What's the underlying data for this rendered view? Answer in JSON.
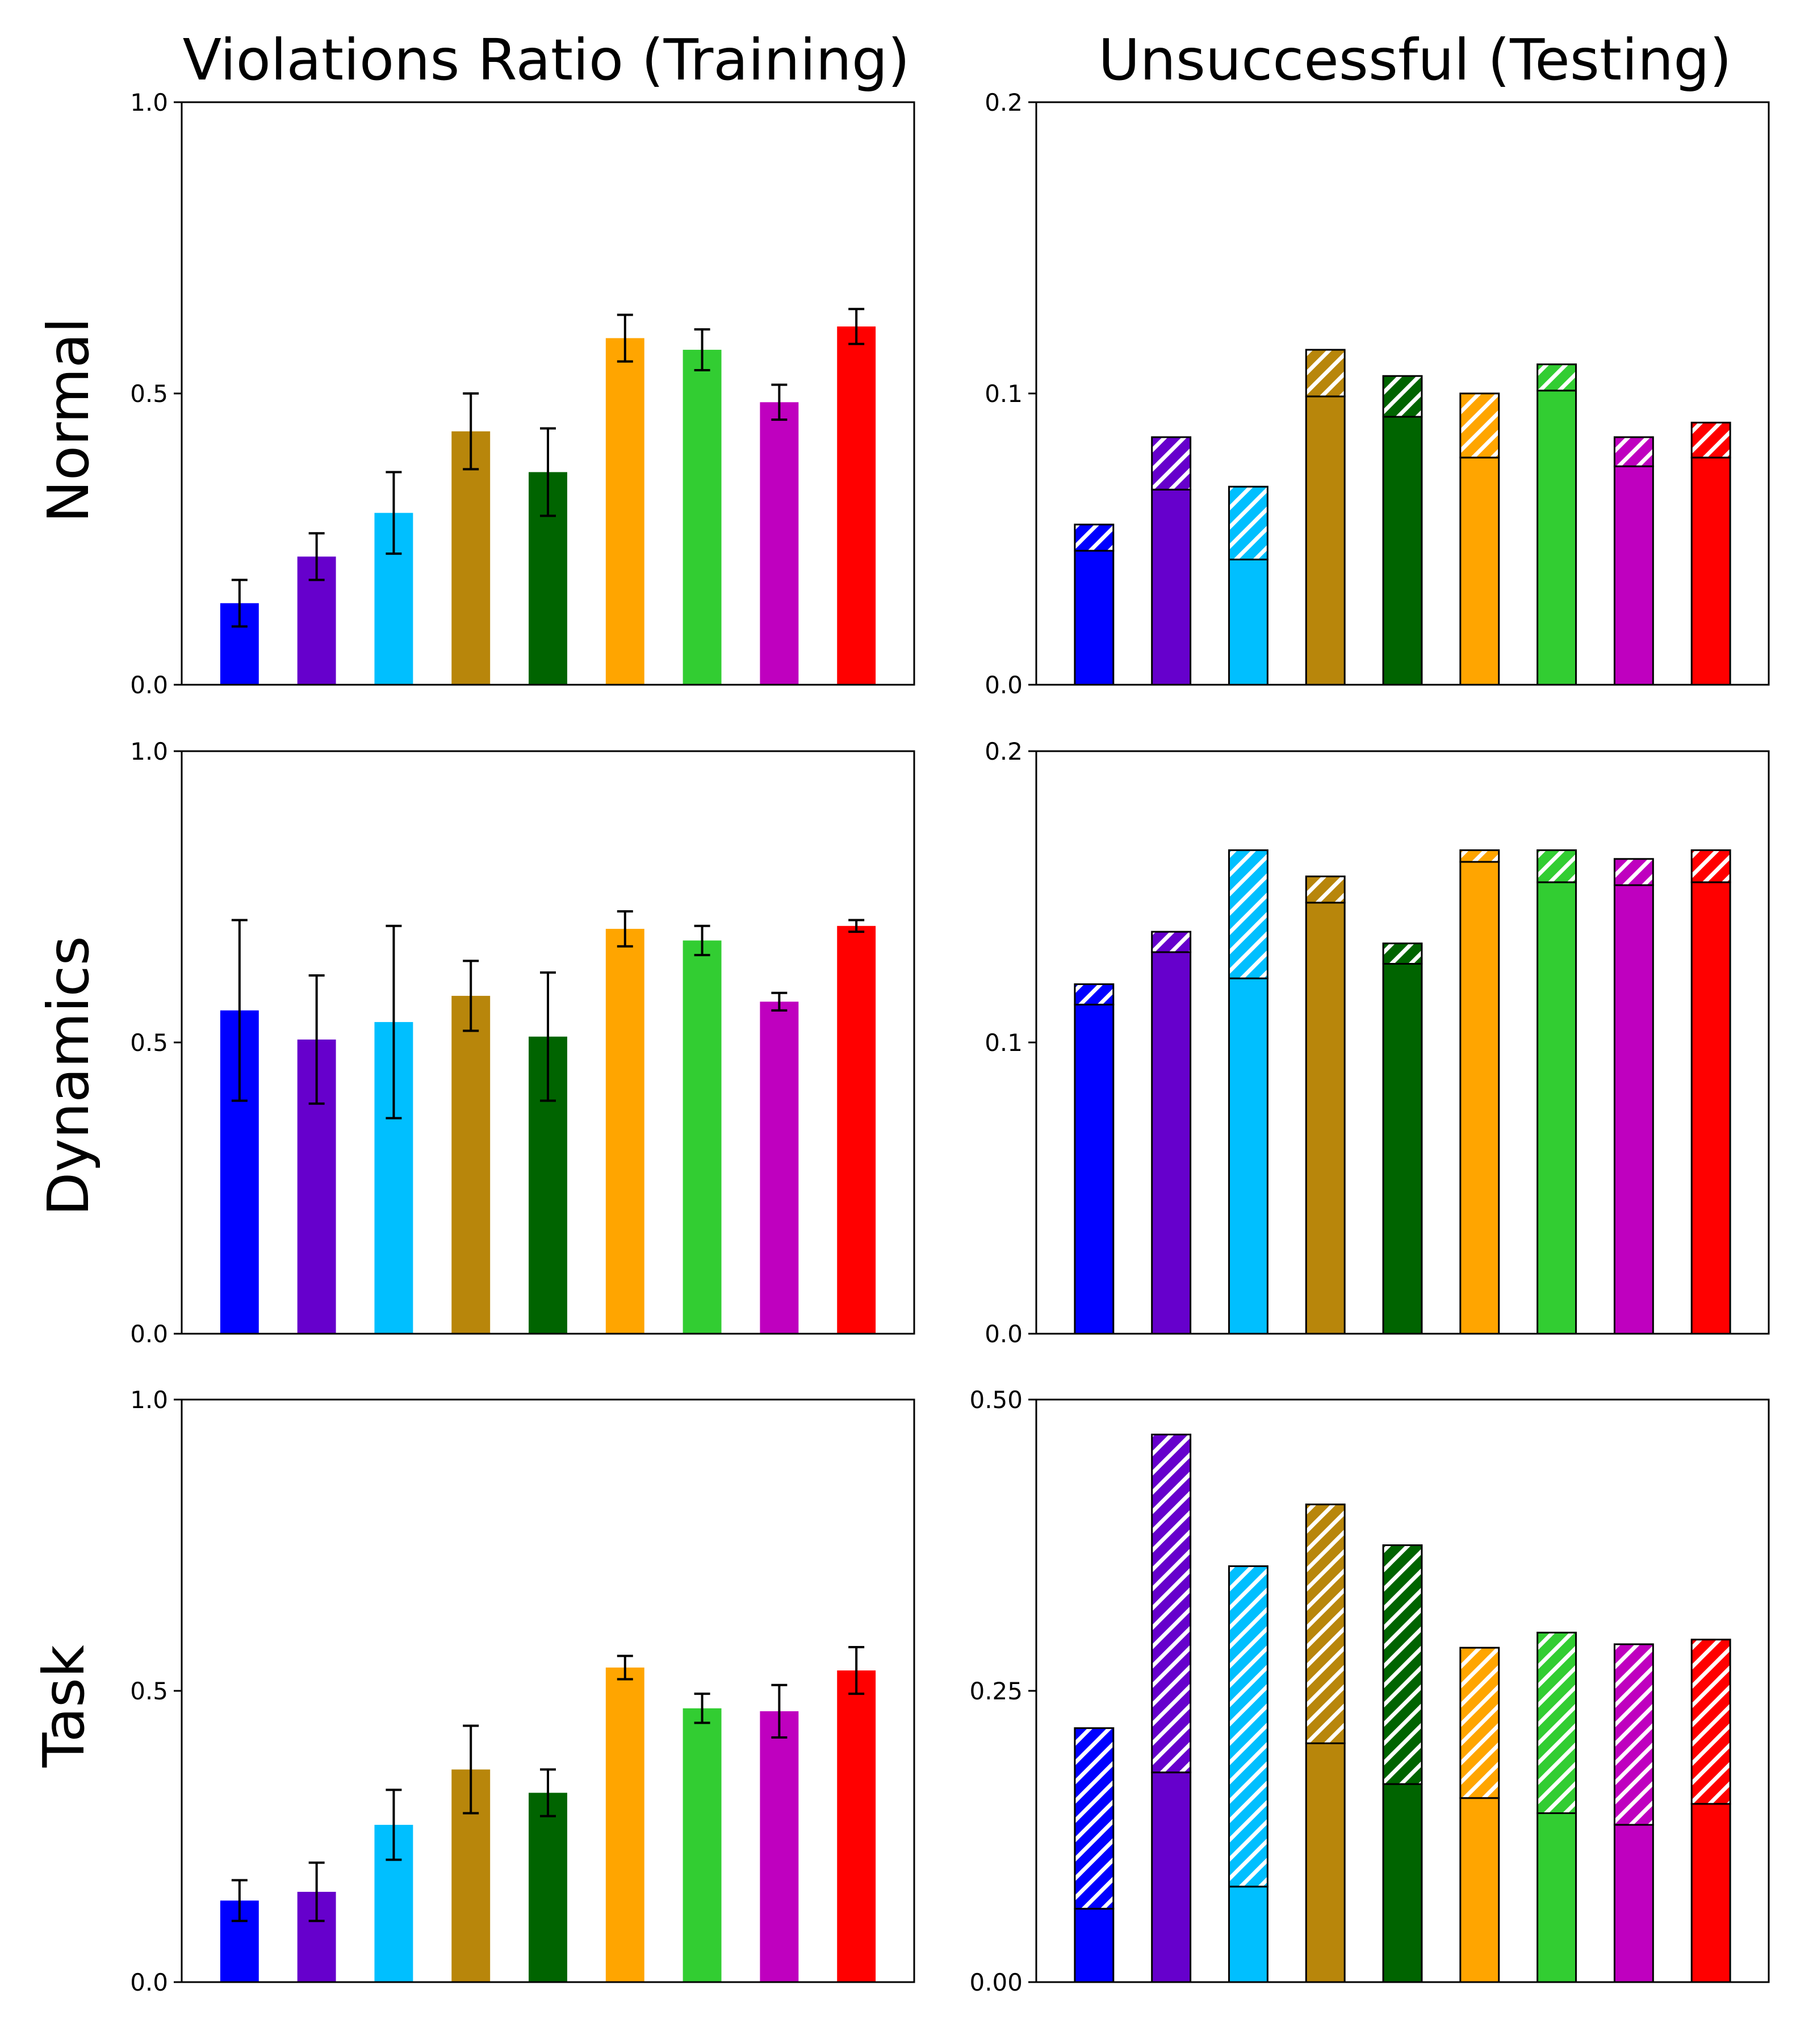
{
  "figure": {
    "column_titles": [
      "Violations Ratio (Training)",
      "Unsuccessful (Testing)"
    ],
    "row_titles": [
      "Normal",
      "Dynamics",
      "Task"
    ]
  },
  "colors": [
    "#0000ff",
    "#6600cc",
    "#00bfff",
    "#b8860b",
    "#006400",
    "#ffa500",
    "#32cd32",
    "#bf00bf",
    "#ff0000"
  ],
  "chart_data": [
    {
      "type": "bar",
      "panel": "Normal / Violations Ratio (Training)",
      "row": 0,
      "col": 0,
      "ylim": [
        0,
        1.0
      ],
      "yticks": [
        "0.0",
        "0.5",
        "1.0"
      ],
      "values": [
        0.14,
        0.22,
        0.295,
        0.435,
        0.365,
        0.595,
        0.575,
        0.485,
        0.615
      ],
      "errors": [
        0.04,
        0.04,
        0.07,
        0.065,
        0.075,
        0.04,
        0.035,
        0.03,
        0.03
      ]
    },
    {
      "type": "bar",
      "panel": "Normal / Unsuccessful (Testing)",
      "row": 0,
      "col": 1,
      "stacked": true,
      "ylim": [
        0,
        0.2
      ],
      "yticks": [
        "0.0",
        "0.1",
        "0.2"
      ],
      "solid": [
        0.046,
        0.067,
        0.043,
        0.099,
        0.092,
        0.078,
        0.101,
        0.075,
        0.078
      ],
      "hatched_top": [
        0.055,
        0.085,
        0.068,
        0.115,
        0.106,
        0.1,
        0.11,
        0.085,
        0.09
      ]
    },
    {
      "type": "bar",
      "panel": "Dynamics / Violations Ratio (Training)",
      "row": 1,
      "col": 0,
      "ylim": [
        0,
        1.0
      ],
      "yticks": [
        "0.0",
        "0.5",
        "1.0"
      ],
      "values": [
        0.555,
        0.505,
        0.535,
        0.58,
        0.51,
        0.695,
        0.675,
        0.57,
        0.7
      ],
      "errors": [
        0.155,
        0.11,
        0.165,
        0.06,
        0.11,
        0.03,
        0.025,
        0.015,
        0.01
      ]
    },
    {
      "type": "bar",
      "panel": "Dynamics / Unsuccessful (Testing)",
      "row": 1,
      "col": 1,
      "stacked": true,
      "ylim": [
        0,
        0.2
      ],
      "yticks": [
        "0.0",
        "0.1",
        "0.2"
      ],
      "solid": [
        0.113,
        0.131,
        0.122,
        0.148,
        0.127,
        0.162,
        0.155,
        0.154,
        0.155
      ],
      "hatched_top": [
        0.12,
        0.138,
        0.166,
        0.157,
        0.134,
        0.166,
        0.166,
        0.163,
        0.166
      ]
    },
    {
      "type": "bar",
      "panel": "Task / Violations Ratio (Training)",
      "row": 2,
      "col": 0,
      "ylim": [
        0,
        1.0
      ],
      "yticks": [
        "0.0",
        "0.5",
        "1.0"
      ],
      "values": [
        0.14,
        0.155,
        0.27,
        0.365,
        0.325,
        0.54,
        0.47,
        0.465,
        0.535
      ],
      "errors": [
        0.035,
        0.05,
        0.06,
        0.075,
        0.04,
        0.02,
        0.025,
        0.045,
        0.04
      ]
    },
    {
      "type": "bar",
      "panel": "Task / Unsuccessful (Testing)",
      "row": 2,
      "col": 1,
      "stacked": true,
      "ylim": [
        0,
        0.5
      ],
      "yticks": [
        "0.00",
        "0.25",
        "0.50"
      ],
      "solid": [
        0.063,
        0.18,
        0.082,
        0.205,
        0.17,
        0.158,
        0.145,
        0.135,
        0.153
      ],
      "hatched_top": [
        0.218,
        0.47,
        0.357,
        0.41,
        0.375,
        0.287,
        0.3,
        0.29,
        0.294
      ]
    }
  ]
}
